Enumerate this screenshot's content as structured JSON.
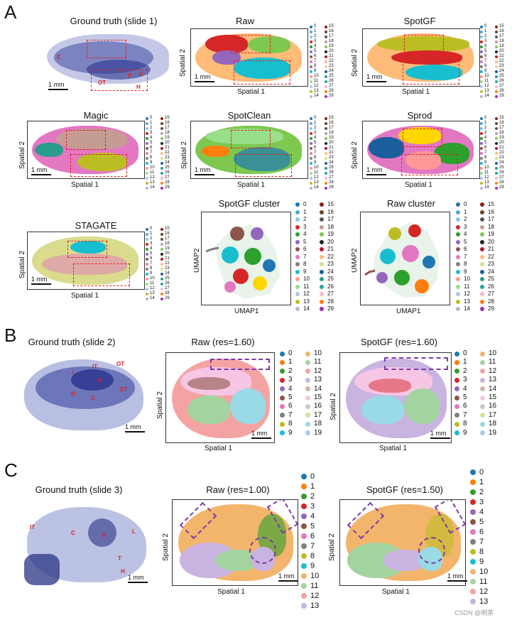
{
  "panel_letters": {
    "a": "A",
    "b": "B",
    "c": "C"
  },
  "titles": {
    "gt1": "Ground truth (slide 1)",
    "raw": "Raw",
    "spotgf": "SpotGF",
    "magic": "Magic",
    "spotclean": "SpotClean",
    "sprod": "Sprod",
    "stagate": "STAGATE",
    "spotgf_cluster": "SpotGF cluster",
    "raw_cluster": "Raw cluster",
    "gt2": "Ground truth (slide 2)",
    "raw_b": "Raw (res=1.60)",
    "spotgf_b": "SpotGF (res=1.60)",
    "gt3": "Ground truth (slide 3)",
    "raw_c": "Raw (res=1.00)",
    "spotgf_c": "SpotGF (res=1.50)"
  },
  "axes": {
    "s1": "Spatial 1",
    "s2": "Spatial 2",
    "u1": "UMAP1",
    "u2": "UMAP2"
  },
  "scale_label": "1 mm",
  "region_labels": {
    "slide1": [
      "E",
      "L",
      "P",
      "C",
      "OT",
      "H"
    ],
    "slide2": [
      "L",
      "IT",
      "OT",
      "P",
      "H",
      "C",
      "OT"
    ],
    "slide3": [
      "IT",
      "C",
      "P",
      "L",
      "T",
      "H"
    ]
  },
  "palette": [
    "#1f77b4",
    "#4fa9d8",
    "#7ec8f0",
    "#d62728",
    "#2ca02c",
    "#9467bd",
    "#8c564b",
    "#e377c2",
    "#7f7f7f",
    "#17becf",
    "#ff9896",
    "#98df8a",
    "#aec7e8",
    "#bcbd22",
    "#c5b0d5",
    "#8c1d18",
    "#6b4226",
    "#555555",
    "#c49c94",
    "#7ec850",
    "#222222",
    "#b5182b",
    "#ffbb78",
    "#dbdb8d",
    "#1b5e9e",
    "#2b9c8c",
    "#24a6a0",
    "#f7b6d2",
    "#ff7f0e",
    "#9e2ab8"
  ],
  "palette_b": [
    "#1f77b4",
    "#ff7f0e",
    "#2ca02c",
    "#d62728",
    "#9467bd",
    "#8c564b",
    "#e377c2",
    "#7f7f7f",
    "#bcbd22",
    "#17becf",
    "#f2b56b",
    "#a3d4a0",
    "#f4a3a3",
    "#c9b3e0",
    "#d4b5a6",
    "#f6c6e4",
    "#c8c8c8",
    "#dede9a",
    "#9ad9e6",
    "#aec7e8"
  ],
  "palette_c": [
    "#1f77b4",
    "#ff7f0e",
    "#2ca02c",
    "#d62728",
    "#9467bd",
    "#8c564b",
    "#e377c2",
    "#7f7f7f",
    "#bcbd22",
    "#17becf",
    "#f2b56b",
    "#a3d4a0",
    "#f4a3a3",
    "#c9b3e0"
  ],
  "watermark": "CSDN @明茶"
}
